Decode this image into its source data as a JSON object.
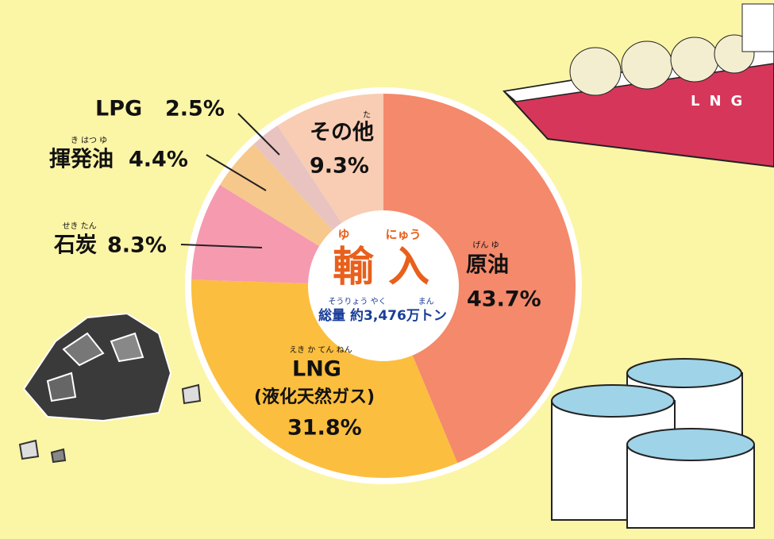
{
  "chart_data": {
    "type": "pie",
    "categories": [
      "原油",
      "LNG",
      "石炭",
      "揮発油",
      "LPG",
      "その他"
    ],
    "category_notes": [
      null,
      "(液化天然ガス)",
      null,
      null,
      null,
      null
    ],
    "category_ruby": [
      "げん ゆ",
      "えき か てん ねん",
      "せき たん",
      "き はつ ゆ",
      null,
      "た"
    ],
    "values": [
      43.7,
      31.8,
      8.3,
      4.4,
      2.5,
      9.3
    ],
    "value_labels": [
      "43.7%",
      "31.8%",
      "8.3%",
      "4.4%",
      "2.5%",
      "9.3%"
    ],
    "colors": [
      "#f4896b",
      "#fbbe3f",
      "#f69ab0",
      "#f6c88b",
      "#e8c3c0",
      "#f9cdb4"
    ],
    "center_label": "輸 入",
    "center_ruby": "ゆ　　　にゅう",
    "center_total": "総量 約3,476万トン",
    "center_total_ruby": "そうりょう やく　　　　まん"
  }
}
